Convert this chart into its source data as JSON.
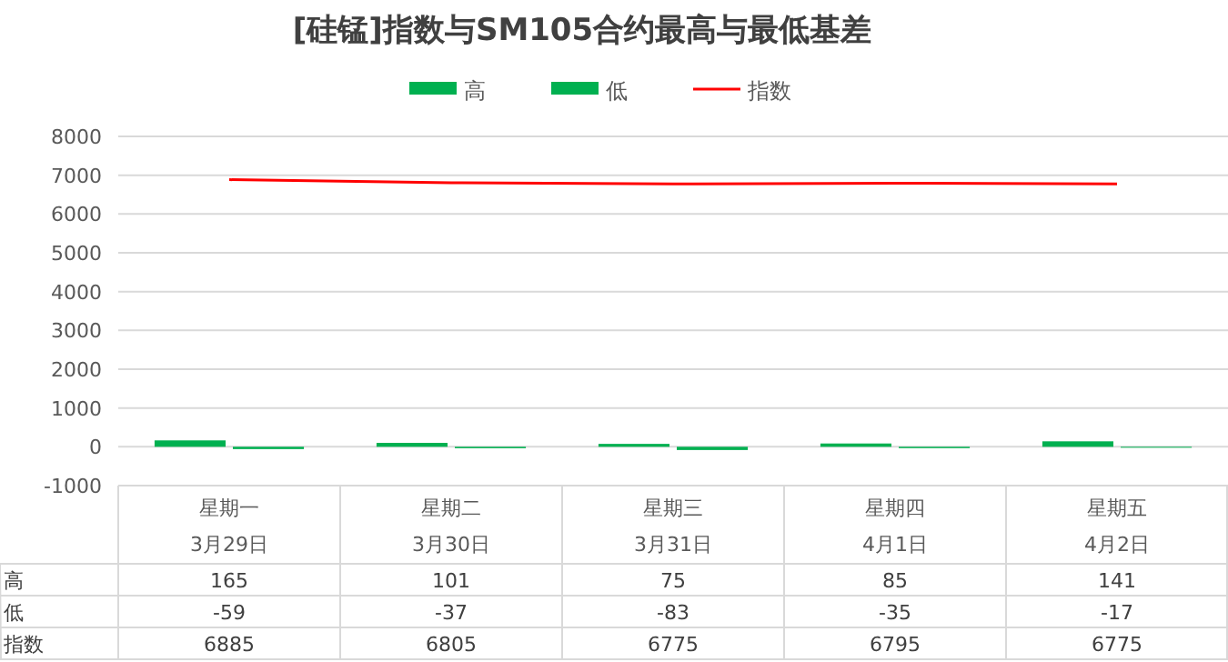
{
  "chart_data": {
    "type": "bar",
    "title": "[硅锰]指数与SM105合约最高与最低基差",
    "categories": [
      "星期一\n3月29日",
      "星期二\n3月30日",
      "星期三\n3月31日",
      "星期四\n4月1日",
      "星期五\n4月2日"
    ],
    "series": [
      {
        "name": "高",
        "color": "#00b050",
        "values": [
          165,
          101,
          75,
          85,
          141
        ]
      },
      {
        "name": "低",
        "color": "#00b050",
        "values": [
          -59,
          -37,
          -83,
          -35,
          -17
        ]
      },
      {
        "name": "指数",
        "type": "line",
        "color": "#ff0000",
        "values": [
          6885,
          6805,
          6775,
          6795,
          6775
        ]
      }
    ],
    "ylim": [
      -1000,
      8000
    ],
    "yticks": [
      -1000,
      0,
      1000,
      2000,
      3000,
      4000,
      5000,
      6000,
      7000,
      8000
    ],
    "grid": "y",
    "legend": "top",
    "data_labels": true
  }
}
